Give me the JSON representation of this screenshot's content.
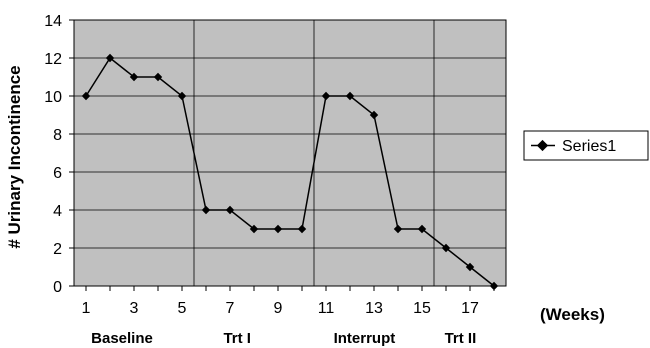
{
  "chart_data": {
    "type": "line",
    "title": "",
    "ylabel": "# Urinary Incontinence",
    "xlabel": "(Weeks)",
    "ylim": [
      0,
      14
    ],
    "xlim": [
      0.5,
      18.5
    ],
    "yticks": [
      "0",
      "2",
      "4",
      "6",
      "8",
      "10",
      "12",
      "14"
    ],
    "xticks": [
      "1",
      "3",
      "5",
      "7",
      "9",
      "11",
      "13",
      "15",
      "17"
    ],
    "phase_labels": [
      "Baseline",
      "Trt I",
      "Interrupt",
      "Trt II"
    ],
    "phase_boundaries": [
      5.5,
      10.5,
      15.5
    ],
    "grid": true,
    "plot_background": "#c0c0c0",
    "line_color": "#000000",
    "legend_position": "right",
    "x": [
      1,
      2,
      3,
      4,
      5,
      6,
      7,
      8,
      9,
      10,
      11,
      12,
      13,
      14,
      15,
      16,
      17,
      18
    ],
    "series": [
      {
        "name": "Series1",
        "values": [
          10,
          12,
          11,
          11,
          10,
          4,
          4,
          3,
          3,
          3,
          10,
          10,
          9,
          3,
          3,
          2,
          1,
          0
        ]
      }
    ]
  }
}
